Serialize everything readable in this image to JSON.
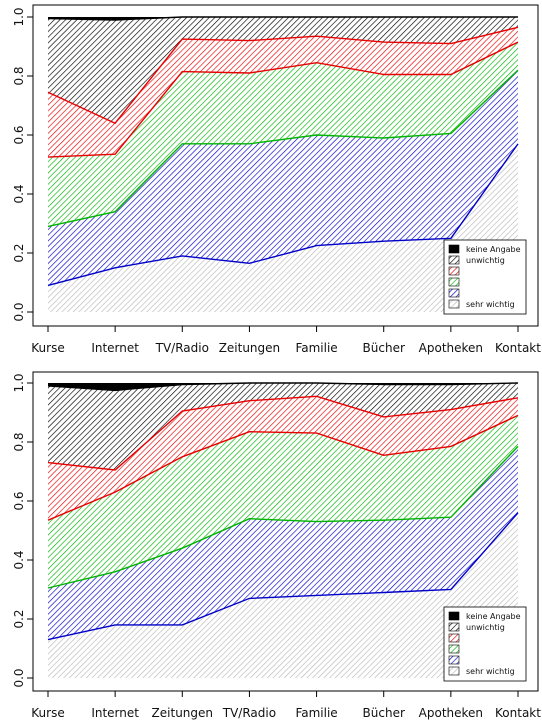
{
  "chart_data": [
    {
      "type": "area",
      "stacked": true,
      "categories": [
        "Kurse",
        "Internet",
        "TV/Radio",
        "Zeitungen",
        "Familie",
        "Bücher",
        "Apotheken",
        "Kontakt"
      ],
      "ylim": [
        0,
        1
      ],
      "yticks": [
        "0.0",
        "0.2",
        "0.4",
        "0.6",
        "0.8",
        "1.0"
      ],
      "legend": {
        "position": "bottom-right",
        "entries": [
          "keine Angabe",
          "unwichtig",
          "",
          "",
          "",
          "sehr wichtig"
        ]
      },
      "series": [
        {
          "name": "sehr wichtig",
          "color": "#b9b9b9",
          "values": [
            0.09,
            0.15,
            0.19,
            0.165,
            0.225,
            0.24,
            0.25,
            0.57
          ]
        },
        {
          "color": "#0000c8",
          "values": [
            0.2,
            0.19,
            0.38,
            0.405,
            0.375,
            0.35,
            0.355,
            0.25
          ]
        },
        {
          "color": "#00b400",
          "values": [
            0.235,
            0.195,
            0.245,
            0.24,
            0.245,
            0.215,
            0.2,
            0.095
          ]
        },
        {
          "color": "#e60000",
          "values": [
            0.22,
            0.105,
            0.11,
            0.11,
            0.09,
            0.11,
            0.105,
            0.05
          ]
        },
        {
          "name": "unwichtig",
          "color": "#000000",
          "values": [
            0.25,
            0.35,
            0.075,
            0.08,
            0.065,
            0.085,
            0.09,
            0.035
          ]
        },
        {
          "name": "keine Angabe",
          "color": "#000000",
          "values": [
            0.005,
            0.01,
            0.0,
            0.0,
            0.0,
            0.0,
            0.0,
            0.0
          ]
        }
      ]
    },
    {
      "type": "area",
      "stacked": true,
      "categories": [
        "Kurse",
        "Internet",
        "Zeitungen",
        "TV/Radio",
        "Familie",
        "Bücher",
        "Apotheken",
        "Kontakt"
      ],
      "ylim": [
        0,
        1
      ],
      "yticks": [
        "0.0",
        "0.2",
        "0.4",
        "0.6",
        "0.8",
        "1.0"
      ],
      "legend": {
        "position": "bottom-right",
        "entries": [
          "keine Angabe",
          "unwichtig",
          "",
          "",
          "",
          "sehr wichtig"
        ]
      },
      "series": [
        {
          "name": "sehr wichtig",
          "color": "#b9b9b9",
          "values": [
            0.13,
            0.18,
            0.18,
            0.27,
            0.28,
            0.29,
            0.3,
            0.56
          ]
        },
        {
          "color": "#0000c8",
          "values": [
            0.175,
            0.18,
            0.26,
            0.27,
            0.25,
            0.245,
            0.245,
            0.225
          ]
        },
        {
          "color": "#00b400",
          "values": [
            0.23,
            0.27,
            0.31,
            0.295,
            0.3,
            0.22,
            0.24,
            0.105
          ]
        },
        {
          "color": "#e60000",
          "values": [
            0.195,
            0.075,
            0.155,
            0.105,
            0.125,
            0.13,
            0.125,
            0.06
          ]
        },
        {
          "name": "unwichtig",
          "color": "#000000",
          "values": [
            0.26,
            0.27,
            0.09,
            0.06,
            0.045,
            0.11,
            0.085,
            0.05
          ]
        },
        {
          "name": "keine Angabe",
          "color": "#000000",
          "values": [
            0.01,
            0.025,
            0.005,
            0.0,
            0.0,
            0.005,
            0.005,
            0.0
          ]
        }
      ]
    }
  ]
}
